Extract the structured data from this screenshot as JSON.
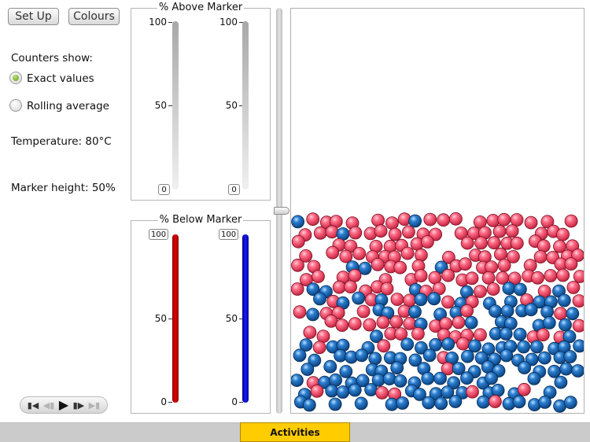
{
  "toolbar": {
    "setup_label": "Set Up",
    "colours_label": "Colours"
  },
  "counters": {
    "heading": "Counters show:",
    "options": [
      {
        "label": "Exact values",
        "selected": true
      },
      {
        "label": "Rolling average",
        "selected": false
      }
    ]
  },
  "temperature": "Temperature: 80°C",
  "marker_height": "Marker height: 50%",
  "above_panel": {
    "title": "% Above Marker",
    "ticks": [
      "100",
      "50",
      "0"
    ],
    "red_value": "0",
    "blue_value": "0"
  },
  "below_panel": {
    "title": "% Below Marker",
    "ticks": [
      "100",
      "50",
      "0"
    ],
    "red_value": "100",
    "blue_value": "100",
    "red_color": "#c40000",
    "blue_color": "#0000c0"
  },
  "marker_slider_percent": 50,
  "particles": {
    "red_color": "#ff5a78",
    "blue_color": "#1f6fc0"
  },
  "playback": {
    "icons": [
      "skip-back-icon",
      "step-back-icon",
      "play-icon",
      "step-forward-icon",
      "skip-forward-icon"
    ]
  },
  "footer": {
    "activities_label": "Activities"
  }
}
